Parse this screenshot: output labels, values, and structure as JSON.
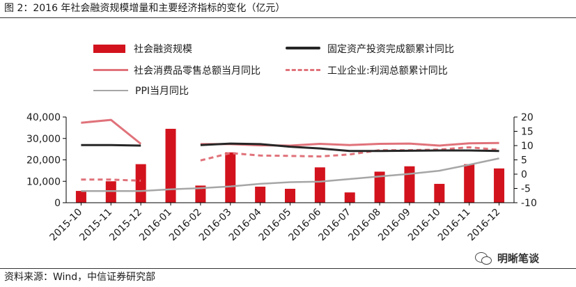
{
  "header": {
    "title": "图 2：2016 年社会融资规模增量和主要经济指标的变化（亿元）"
  },
  "footer": {
    "source": "资料来源：Wind，中信证券研究部",
    "brand": "明晰笔谈"
  },
  "colors": {
    "bar": "#d2131d",
    "fixed_asset": "#262626",
    "retail": "#e0727a",
    "profit": "#e0727a",
    "ppi": "#a6a6a6",
    "rule": "#333333"
  },
  "chart_data": {
    "type": "bar",
    "categories": [
      "2015-10",
      "2015-11",
      "2015-12",
      "2016-01",
      "2016-02",
      "2016-03",
      "2016-04",
      "2016-05",
      "2016-06",
      "2016-07",
      "2016-08",
      "2016-09",
      "2016-10",
      "2016-11",
      "2016-12"
    ],
    "left_axis": {
      "min": 0,
      "max": 40000,
      "ticks": [
        "0",
        "10,000",
        "20,000",
        "30,000",
        "40,000"
      ]
    },
    "right_axis": {
      "min": -10,
      "max": 20,
      "ticks": [
        "-10",
        "-5",
        "0",
        "5",
        "10",
        "15",
        "20"
      ]
    },
    "grid": false,
    "legend_position": "top",
    "series": [
      {
        "name": "社会融资规模",
        "type": "bar",
        "axis": "left",
        "values": [
          5500,
          10000,
          18000,
          34500,
          8000,
          23500,
          7500,
          6500,
          16500,
          4800,
          14500,
          17000,
          8800,
          18000,
          16000
        ]
      },
      {
        "name": "固定资产投资完成额累计同比",
        "type": "line",
        "style": "solid",
        "axis": "right",
        "values": [
          10.2,
          10.2,
          10.0,
          null,
          10.2,
          10.7,
          10.5,
          9.6,
          9.0,
          8.1,
          8.1,
          8.2,
          8.3,
          8.3,
          8.1
        ]
      },
      {
        "name": "社会消费品零售总额当月同比",
        "type": "line",
        "style": "solid",
        "axis": "right",
        "values": [
          18.0,
          19.0,
          10.6,
          null,
          10.5,
          10.5,
          10.1,
          10.0,
          10.6,
          10.2,
          10.6,
          10.7,
          10.0,
          10.8,
          10.9
        ]
      },
      {
        "name": "工业企业:利润总额累计同比",
        "type": "line",
        "style": "dashed",
        "axis": "right",
        "values": [
          -1.9,
          -1.9,
          -2.3,
          null,
          4.8,
          7.4,
          6.5,
          6.4,
          6.2,
          6.9,
          8.4,
          8.4,
          8.6,
          9.4,
          8.5
        ]
      },
      {
        "name": "PPI当月同比",
        "type": "line",
        "style": "solid",
        "axis": "right",
        "values": [
          -5.9,
          -5.9,
          -5.9,
          -5.3,
          -4.9,
          -4.3,
          -3.4,
          -2.8,
          -2.6,
          -1.7,
          -0.8,
          0.1,
          1.2,
          3.3,
          5.5
        ]
      }
    ]
  }
}
